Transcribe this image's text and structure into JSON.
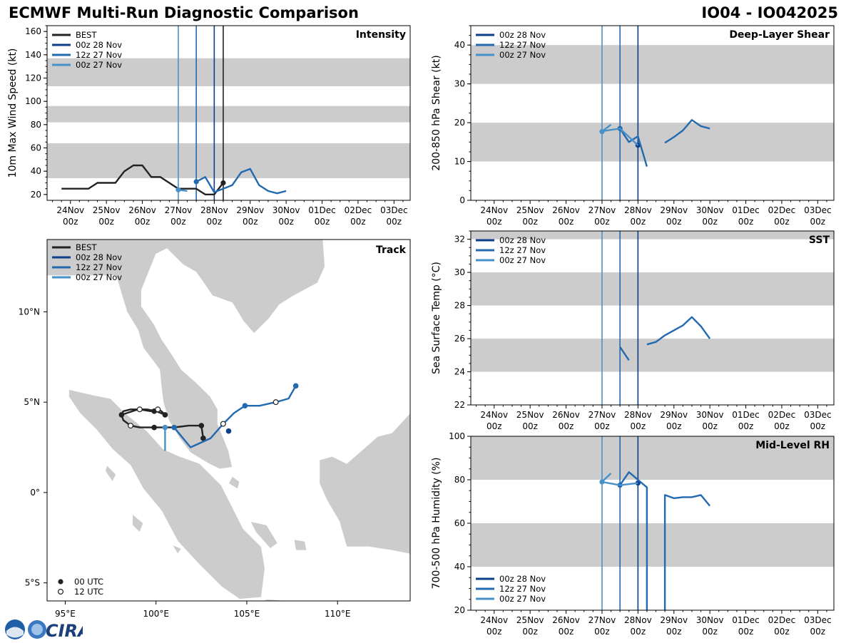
{
  "header": {
    "title_left": "ECMWF Multi-Run Diagnostic Comparison",
    "title_right": "IO04 - IO042025"
  },
  "logo": {
    "text": "CIRA",
    "noaa_text": "NOAA"
  },
  "colors": {
    "best": "#222222",
    "run_00z28": "#0b3f8a",
    "run_12z27": "#2369b0",
    "run_00z27": "#4891c8",
    "band": "#cccccc",
    "land": "#cccccc"
  },
  "time_axis": {
    "labels": [
      "24Nov",
      "25Nov",
      "26Nov",
      "27Nov",
      "28Nov",
      "29Nov",
      "30Nov",
      "01Dec",
      "02Dec",
      "03Dec"
    ],
    "sublabel": "00z",
    "xlim": [
      -0.65,
      9.45
    ]
  },
  "chart_data": [
    {
      "id": "intensity",
      "type": "line",
      "title": "Intensity",
      "ylabel": "10m Max Wind Speed (kt)",
      "ylim": [
        15,
        165
      ],
      "yticks": [
        20,
        40,
        60,
        80,
        100,
        120,
        140,
        160
      ],
      "bands": [
        [
          34,
          64
        ],
        [
          82,
          96
        ],
        [
          113,
          137
        ]
      ],
      "vlines": [
        {
          "x": 3.0,
          "series": "run_00z27"
        },
        {
          "x": 3.5,
          "series": "run_12z27"
        },
        {
          "x": 4.0,
          "series": "run_00z28"
        },
        {
          "x": 4.25,
          "series": "best"
        }
      ],
      "legend": [
        "BEST",
        "00z 28 Nov",
        "12z 27 Nov",
        "00z 27 Nov"
      ],
      "series": [
        {
          "name": "BEST",
          "key": "best",
          "x": [
            -0.25,
            0,
            0.25,
            0.5,
            0.75,
            1,
            1.25,
            1.5,
            1.75,
            2,
            2.25,
            2.5,
            2.75,
            3,
            3.25,
            3.5,
            3.75,
            4,
            4.25
          ],
          "y": [
            25,
            25,
            25,
            25,
            30,
            30,
            30,
            40,
            45,
            45,
            35,
            35,
            30,
            25,
            25,
            25,
            20,
            20,
            30
          ],
          "marker_x": [
            4.25
          ],
          "marker_y": [
            30
          ]
        },
        {
          "name": "00z 28 Nov",
          "key": "run_00z28",
          "x": [
            4.0
          ],
          "y": [
            22
          ],
          "marker_x": [],
          "marker_y": []
        },
        {
          "name": "12z 27 Nov",
          "key": "run_12z27",
          "x": [
            3.5,
            3.75,
            4.0,
            4.25,
            4.5,
            4.75,
            5.0,
            5.25,
            5.5,
            5.75,
            6.0
          ],
          "y": [
            31,
            35,
            22,
            25,
            28,
            39,
            42,
            28,
            23,
            21,
            23
          ],
          "marker_x": [
            3.5
          ],
          "marker_y": [
            31
          ]
        },
        {
          "name": "00z 27 Nov",
          "key": "run_00z27",
          "x": [
            3.0,
            3.25
          ],
          "y": [
            24,
            23
          ],
          "marker_x": [
            3.0
          ],
          "marker_y": [
            24
          ]
        }
      ]
    },
    {
      "id": "shear",
      "type": "line",
      "title": "Deep-Layer Shear",
      "ylabel": "200-850 hPa Shear (kt)",
      "ylim": [
        0,
        45
      ],
      "yticks": [
        0,
        10,
        20,
        30,
        40
      ],
      "bands": [
        [
          10,
          20
        ],
        [
          30,
          40
        ]
      ],
      "vlines": [
        {
          "x": 3.0,
          "series": "run_00z27"
        },
        {
          "x": 3.5,
          "series": "run_12z27"
        },
        {
          "x": 4.0,
          "series": "run_00z28"
        }
      ],
      "legend": [
        "00z 28 Nov",
        "12z 27 Nov",
        "00z 27 Nov"
      ],
      "series": [
        {
          "name": "00z 28 Nov",
          "key": "run_00z28",
          "x": [
            4.0
          ],
          "y": [
            14.2
          ],
          "marker_x": [
            4.0
          ],
          "marker_y": [
            14.2
          ]
        },
        {
          "name": "12z 27 Nov",
          "key": "run_12z27",
          "x": [
            3.5,
            3.75,
            4.0,
            4.25
          ],
          "y": [
            18.5,
            15,
            16.5,
            8.7
          ],
          "marker_x": [
            3.5
          ],
          "marker_y": [
            18.5
          ]
        },
        {
          "name": "12z 27 Nov (cont.)",
          "key": "run_12z27",
          "x": [
            4.75,
            5.0,
            5.25,
            5.5,
            5.75,
            6.0
          ],
          "y": [
            14.8,
            16.3,
            18,
            20.7,
            19.1,
            18.5
          ],
          "marker_x": [],
          "marker_y": []
        },
        {
          "name": "00z 27 Nov",
          "key": "run_00z27",
          "x": [
            3.0,
            3.25
          ],
          "y": [
            17.7,
            19.5
          ],
          "marker_x": [
            3.0
          ],
          "marker_y": [
            17.7
          ]
        },
        {
          "name": "00z 27 Nov (cont.)",
          "key": "run_00z27",
          "x": [
            3.0,
            3.5,
            4.0
          ],
          "y": [
            17.8,
            18.5,
            14.2
          ],
          "marker_x": [],
          "marker_y": []
        }
      ]
    },
    {
      "id": "sst",
      "type": "line",
      "title": "SST",
      "ylabel": "Sea Surface Temp (°C)",
      "ylim": [
        22,
        32.5
      ],
      "yticks": [
        22,
        24,
        26,
        28,
        30,
        32
      ],
      "bands": [
        [
          24,
          26
        ],
        [
          28,
          30
        ],
        [
          32,
          32.5
        ]
      ],
      "vlines": [
        {
          "x": 3.0,
          "series": "run_00z27"
        },
        {
          "x": 3.5,
          "series": "run_12z27"
        },
        {
          "x": 4.0,
          "series": "run_00z28"
        }
      ],
      "legend": [
        "00z 28 Nov",
        "12z 27 Nov",
        "00z 27 Nov"
      ],
      "series": [
        {
          "name": "12z 27 Nov",
          "key": "run_12z27",
          "x": [
            3.5,
            3.75
          ],
          "y": [
            25.5,
            24.7
          ],
          "marker_x": [],
          "marker_y": []
        },
        {
          "name": "12z 27 Nov (cont.)",
          "key": "run_12z27",
          "x": [
            4.25,
            4.5,
            4.75,
            5.0,
            5.25,
            5.5,
            5.75,
            6.0
          ],
          "y": [
            25.65,
            25.8,
            26.2,
            26.5,
            26.8,
            27.3,
            26.75,
            26.0
          ],
          "marker_x": [],
          "marker_y": []
        }
      ]
    },
    {
      "id": "rh",
      "type": "line",
      "title": "Mid-Level RH",
      "ylabel": "700-500 hPa Humidity (%)",
      "ylim": [
        20,
        100
      ],
      "yticks": [
        20,
        40,
        60,
        80,
        100
      ],
      "bands": [
        [
          40,
          60
        ],
        [
          80,
          100
        ]
      ],
      "vlines": [
        {
          "x": 3.0,
          "series": "run_00z27"
        },
        {
          "x": 3.5,
          "series": "run_12z27"
        },
        {
          "x": 4.0,
          "series": "run_00z28"
        }
      ],
      "legend": [
        "00z 28 Nov",
        "12z 27 Nov",
        "00z 27 Nov"
      ],
      "series": [
        {
          "name": "00z 28 Nov",
          "key": "run_00z28",
          "x": [
            4.0
          ],
          "y": [
            78.5
          ],
          "marker_x": [
            4.0
          ],
          "marker_y": [
            78.5
          ]
        },
        {
          "name": "12z 27 Nov",
          "key": "run_12z27",
          "x": [
            3.5,
            3.75,
            4.0,
            4.25,
            4.25
          ],
          "y": [
            77.5,
            83.5,
            80,
            76.5,
            20
          ],
          "marker_x": [
            3.5
          ],
          "marker_y": [
            77.5
          ]
        },
        {
          "name": "12z 27 Nov (cont.)",
          "key": "run_12z27",
          "x": [
            4.75,
            4.75,
            5.0,
            5.25,
            5.5,
            5.75,
            6.0
          ],
          "y": [
            20,
            73,
            71.5,
            72,
            72,
            73,
            68
          ],
          "marker_x": [],
          "marker_y": []
        },
        {
          "name": "00z 27 Nov",
          "key": "run_00z27",
          "x": [
            3.0,
            3.25
          ],
          "y": [
            79,
            83
          ],
          "marker_x": [
            3.0
          ],
          "marker_y": [
            79
          ]
        },
        {
          "name": "00z 27 Nov (cont.)",
          "key": "run_00z27",
          "x": [
            3.0,
            3.5,
            4.0
          ],
          "y": [
            79,
            77.5,
            78.5
          ],
          "marker_x": [],
          "marker_y": []
        }
      ]
    },
    {
      "id": "track",
      "type": "scatter",
      "title": "Track",
      "lon_range": [
        94,
        114
      ],
      "lat_range": [
        -6,
        14
      ],
      "xticks": [
        {
          "v": 95,
          "label": "95°E"
        },
        {
          "v": 100,
          "label": "100°E"
        },
        {
          "v": 105,
          "label": "105°E"
        },
        {
          "v": 110,
          "label": "110°E"
        }
      ],
      "yticks": [
        {
          "v": -5,
          "label": "5°S"
        },
        {
          "v": 0,
          "label": "0°"
        },
        {
          "v": 5,
          "label": "5°N"
        },
        {
          "v": 10,
          "label": "10°N"
        }
      ],
      "legend": [
        "BEST",
        "00z 28 Nov",
        "12z 27 Nov",
        "00z 27 Nov"
      ],
      "marker_legend": [
        "00 UTC",
        "12 UTC"
      ],
      "best_track": {
        "lon": [
          102.6,
          102.5,
          101.8,
          101.0,
          100.4,
          99.9,
          99.1,
          98.6,
          98.2,
          98.1,
          98.2,
          98.6,
          99.1,
          99.7,
          100.1,
          100.3,
          100.5,
          100.0,
          99.5,
          99.0,
          98.4,
          98.1
        ],
        "lat": [
          3.0,
          3.7,
          3.7,
          3.6,
          3.6,
          3.6,
          3.6,
          3.7,
          4.0,
          4.3,
          4.5,
          4.6,
          4.6,
          4.5,
          4.6,
          4.5,
          4.3,
          4.5,
          4.6,
          4.6,
          4.4,
          4.3
        ],
        "marks00": [
          [
            102.6,
            3.0
          ],
          [
            100.5,
            4.3
          ],
          [
            99.9,
            4.5
          ],
          [
            98.1,
            4.3
          ],
          [
            102.5,
            3.7
          ],
          [
            99.9,
            3.6
          ]
        ],
        "marks12": [
          [
            100.1,
            4.6
          ],
          [
            99.1,
            4.6
          ],
          [
            98.6,
            3.7
          ]
        ]
      },
      "run_00z28": {
        "lon": [
          104.0
        ],
        "lat": [
          3.4
        ],
        "marks00": [
          [
            104.0,
            3.4
          ]
        ],
        "marks12": []
      },
      "run_12z27": {
        "lon": [
          101.0,
          101.9,
          103.0,
          103.7,
          104.3,
          104.9,
          105.7,
          106.6,
          107.3,
          107.7
        ],
        "lat": [
          3.6,
          2.5,
          3.0,
          3.8,
          4.4,
          4.8,
          4.8,
          5.0,
          5.2,
          5.9
        ],
        "marks00": [
          [
            101.0,
            3.6
          ],
          [
            104.9,
            4.8
          ],
          [
            107.7,
            5.9
          ]
        ],
        "marks12": [
          [
            103.7,
            3.8
          ],
          [
            106.6,
            5.0
          ]
        ]
      },
      "run_00z27": {
        "lon": [
          100.5,
          100.5,
          100.5
        ],
        "lat": [
          2.3,
          3.0,
          3.6
        ],
        "marks00": [
          [
            100.5,
            3.6
          ]
        ],
        "marks12": []
      }
    }
  ]
}
